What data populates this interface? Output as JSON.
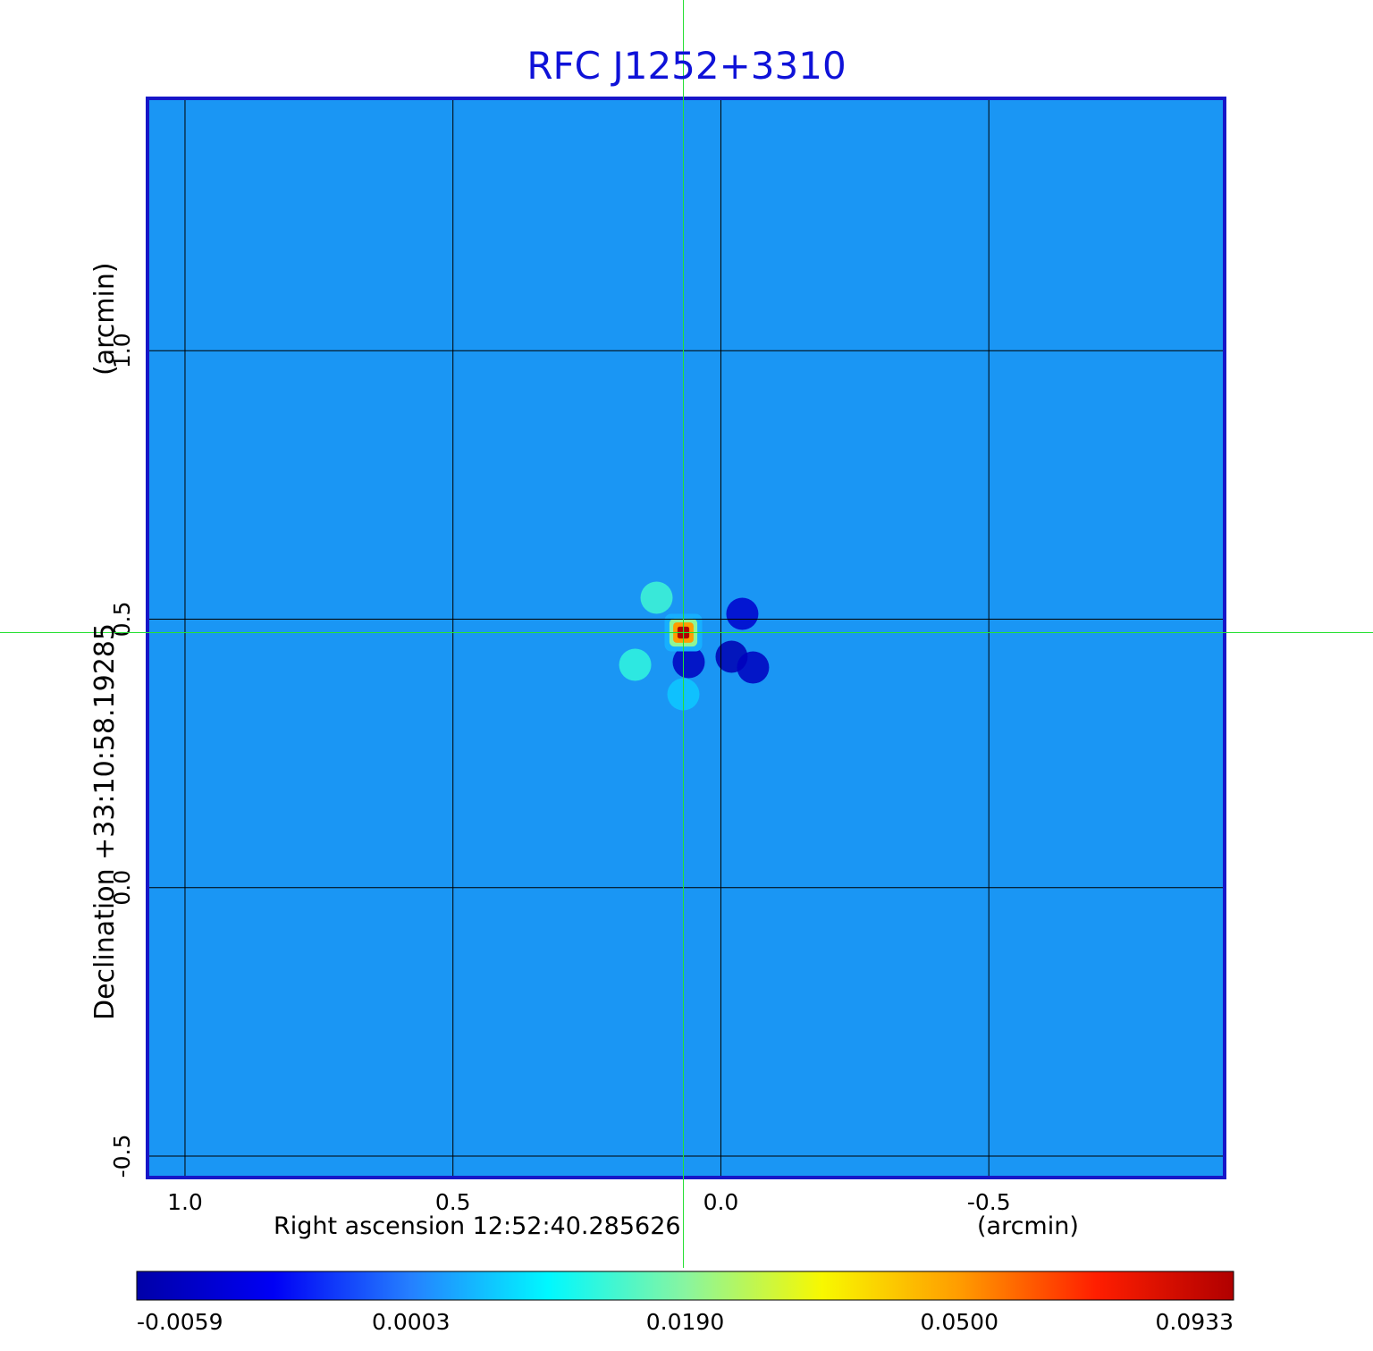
{
  "chart_data": {
    "type": "heatmap",
    "title": "RFC J1252+3310",
    "xlabel": "Right ascension  12:52:40.285626",
    "xunit": "(arcmin)",
    "ylabel": "Declination  +33:10:58.19285",
    "yunit": "(arcmin)",
    "xlim": [
      1.07,
      -0.94
    ],
    "ylim": [
      -0.54,
      1.47
    ],
    "x_ticks": [
      {
        "value": 1.0,
        "label": "1.0"
      },
      {
        "value": 0.5,
        "label": "0.5"
      },
      {
        "value": 0.0,
        "label": "0.0"
      },
      {
        "value": -0.5,
        "label": "-0.5"
      }
    ],
    "y_ticks": [
      {
        "value": 1.0,
        "label": "1.0"
      },
      {
        "value": 0.5,
        "label": "0.5"
      },
      {
        "value": 0.0,
        "label": "0.0"
      },
      {
        "value": -0.5,
        "label": "-0.5"
      }
    ],
    "grid": true,
    "crosshair": {
      "x": 0.07,
      "y": 0.475
    },
    "source": {
      "x": 0.07,
      "y": 0.475,
      "peak": 0.0933,
      "features": [
        {
          "x": 0.12,
          "y": 0.54,
          "value": 0.014
        },
        {
          "x": 0.16,
          "y": 0.415,
          "value": 0.013
        },
        {
          "x": 0.07,
          "y": 0.36,
          "value": 0.006
        },
        {
          "x": 0.06,
          "y": 0.42,
          "value": -0.005
        },
        {
          "x": -0.02,
          "y": 0.43,
          "value": -0.0055
        },
        {
          "x": -0.06,
          "y": 0.41,
          "value": -0.005
        },
        {
          "x": -0.04,
          "y": 0.51,
          "value": -0.0045
        }
      ]
    },
    "colorbar": {
      "ticks": [
        {
          "value": -0.0059,
          "label": "-0.0059"
        },
        {
          "value": 0.0003,
          "label": "0.0003"
        },
        {
          "value": 0.019,
          "label": "0.0190"
        },
        {
          "value": 0.05,
          "label": "0.0500"
        },
        {
          "value": 0.0933,
          "label": "0.0933"
        }
      ],
      "colors": [
        "#0000a8",
        "#0000f5",
        "#2580ff",
        "#00f8ff",
        "#88f5a0",
        "#f8f800",
        "#ff9c00",
        "#ff1e00",
        "#b00000"
      ]
    },
    "colors": {
      "title": "#0f12d8",
      "frame": "#1616c8",
      "crosshair": "#27e033",
      "grid": "#000000",
      "background": "#1a96f4"
    }
  }
}
